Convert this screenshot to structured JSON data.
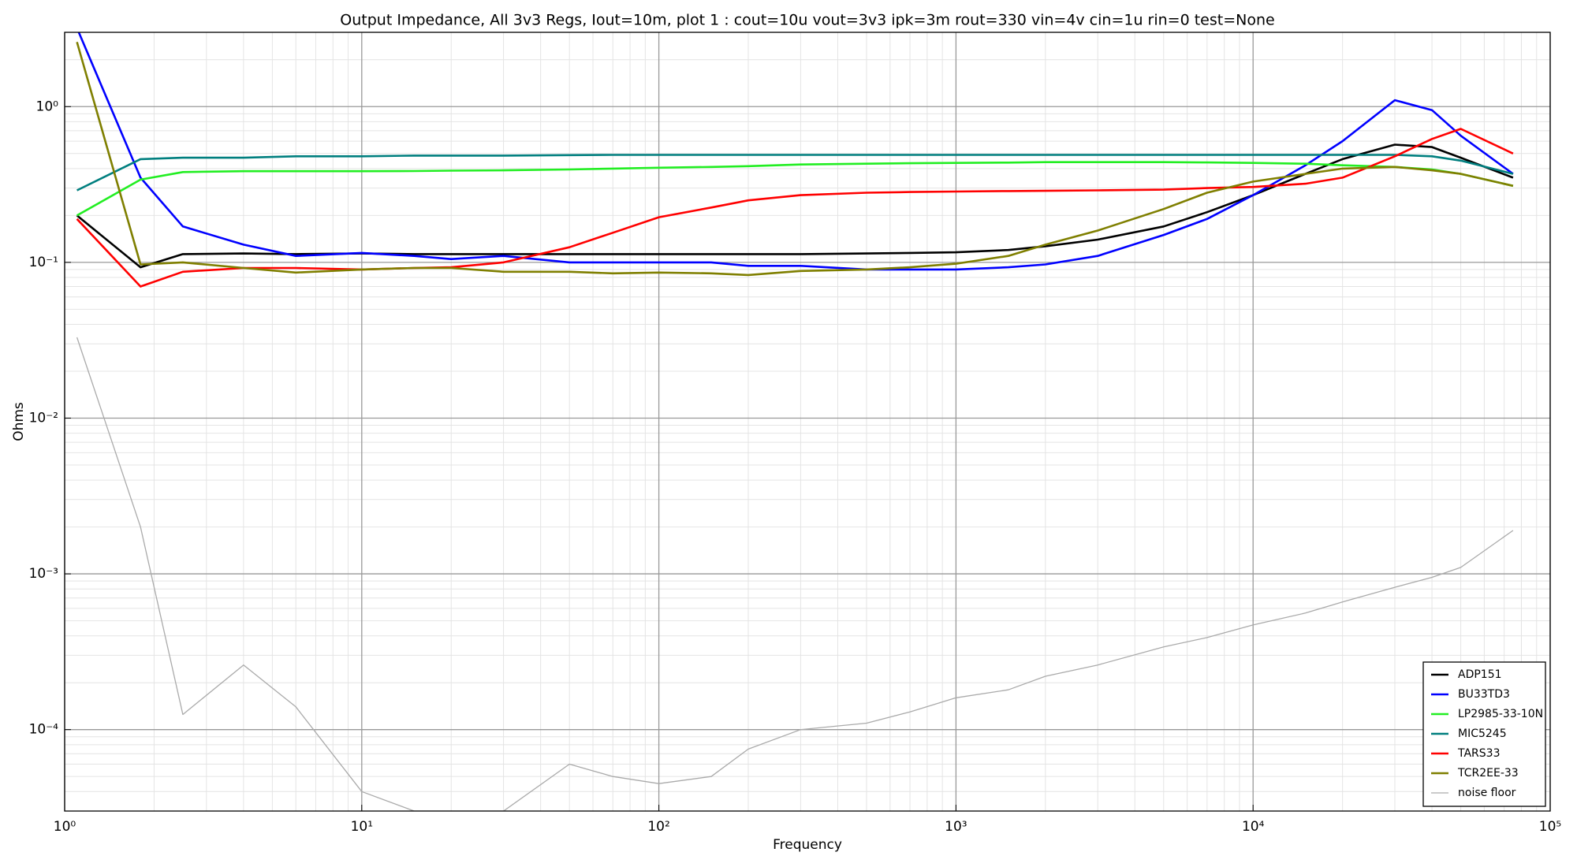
{
  "chart_data": {
    "type": "line",
    "title": "Output Impedance, All 3v3 Regs, Iout=10m, plot 1 : cout=10u vout=3v3 ipk=3m rout=330 vin=4v cin=1u rin=0 test=None",
    "x_label": "Frequency",
    "y_label": "Ohms",
    "log_x": true,
    "log_y": true,
    "grid": true,
    "minor_grid": true,
    "legend": "lower right",
    "xlim": [
      1,
      100000
    ],
    "ylim": [
      3e-05,
      3
    ],
    "xticks": [
      {
        "value": 1,
        "label": "10⁰"
      },
      {
        "value": 10,
        "label": "10¹"
      },
      {
        "value": 100,
        "label": "10²"
      },
      {
        "value": 1000,
        "label": "10³"
      },
      {
        "value": 10000,
        "label": "10⁴"
      },
      {
        "value": 100000,
        "label": "10⁵"
      }
    ],
    "yticks": [
      {
        "value": 0.0001,
        "label": "10⁻⁴"
      },
      {
        "value": 0.001,
        "label": "10⁻³"
      },
      {
        "value": 0.01,
        "label": "10⁻²"
      },
      {
        "value": 0.1,
        "label": "10⁻¹"
      },
      {
        "value": 1,
        "label": "10⁰"
      }
    ],
    "x": [
      1.1,
      1.8,
      2.5,
      4,
      6,
      10,
      15,
      20,
      30,
      50,
      70,
      100,
      150,
      200,
      300,
      500,
      700,
      1000,
      1500,
      2000,
      3000,
      5000,
      7000,
      10000,
      15000,
      20000,
      30000,
      40000,
      50000,
      75000
    ],
    "series": [
      {
        "name": "ADP151",
        "color": "#000000",
        "values": [
          0.2,
          0.093,
          0.113,
          0.114,
          0.113,
          0.114,
          0.113,
          0.113,
          0.113,
          0.113,
          0.113,
          0.113,
          0.113,
          0.113,
          0.113,
          0.114,
          0.115,
          0.116,
          0.12,
          0.127,
          0.14,
          0.17,
          0.21,
          0.27,
          0.37,
          0.46,
          0.57,
          0.55,
          0.47,
          0.35
        ]
      },
      {
        "name": "BU33TD3",
        "color": "#0000ff",
        "values": [
          3.2,
          0.35,
          0.17,
          0.13,
          0.11,
          0.115,
          0.11,
          0.105,
          0.11,
          0.1,
          0.1,
          0.1,
          0.1,
          0.095,
          0.095,
          0.09,
          0.09,
          0.09,
          0.093,
          0.097,
          0.11,
          0.15,
          0.19,
          0.27,
          0.42,
          0.6,
          1.1,
          0.95,
          0.65,
          0.37
        ]
      },
      {
        "name": "LP2985-33-10N",
        "color": "#22ee22",
        "values": [
          0.2,
          0.34,
          0.38,
          0.385,
          0.385,
          0.385,
          0.386,
          0.388,
          0.39,
          0.395,
          0.4,
          0.405,
          0.41,
          0.415,
          0.425,
          0.43,
          0.433,
          0.435,
          0.437,
          0.44,
          0.44,
          0.44,
          0.438,
          0.435,
          0.43,
          0.42,
          0.41,
          0.395,
          0.37,
          0.31
        ]
      },
      {
        "name": "MIC5245",
        "color": "#007f7f",
        "values": [
          0.29,
          0.46,
          0.47,
          0.47,
          0.48,
          0.48,
          0.485,
          0.485,
          0.485,
          0.488,
          0.49,
          0.49,
          0.49,
          0.49,
          0.49,
          0.49,
          0.49,
          0.49,
          0.49,
          0.49,
          0.49,
          0.49,
          0.49,
          0.49,
          0.49,
          0.49,
          0.49,
          0.48,
          0.45,
          0.37
        ]
      },
      {
        "name": "TARS33",
        "color": "#ff0000",
        "values": [
          0.19,
          0.07,
          0.087,
          0.092,
          0.092,
          0.09,
          0.092,
          0.093,
          0.1,
          0.125,
          0.155,
          0.195,
          0.225,
          0.25,
          0.27,
          0.28,
          0.283,
          0.285,
          0.287,
          0.288,
          0.29,
          0.293,
          0.3,
          0.305,
          0.32,
          0.35,
          0.48,
          0.62,
          0.72,
          0.5
        ]
      },
      {
        "name": "TCR2EE-33",
        "color": "#7f7f00",
        "values": [
          2.6,
          0.097,
          0.1,
          0.092,
          0.086,
          0.09,
          0.092,
          0.092,
          0.087,
          0.087,
          0.085,
          0.086,
          0.085,
          0.083,
          0.088,
          0.09,
          0.093,
          0.098,
          0.11,
          0.13,
          0.16,
          0.22,
          0.28,
          0.33,
          0.37,
          0.4,
          0.41,
          0.39,
          0.37,
          0.31
        ]
      },
      {
        "name": "noise floor",
        "color": "#aaaaaa",
        "values": [
          0.033,
          0.002,
          0.000125,
          0.00026,
          0.00014,
          4e-05,
          3e-05,
          3e-05,
          3e-05,
          6e-05,
          5e-05,
          4.5e-05,
          5e-05,
          7.5e-05,
          0.0001,
          0.00011,
          0.00013,
          0.00016,
          0.00018,
          0.00022,
          0.00026,
          0.00034,
          0.00039,
          0.00047,
          0.00056,
          0.00066,
          0.00082,
          0.00095,
          0.0011,
          0.0019
        ]
      }
    ]
  }
}
